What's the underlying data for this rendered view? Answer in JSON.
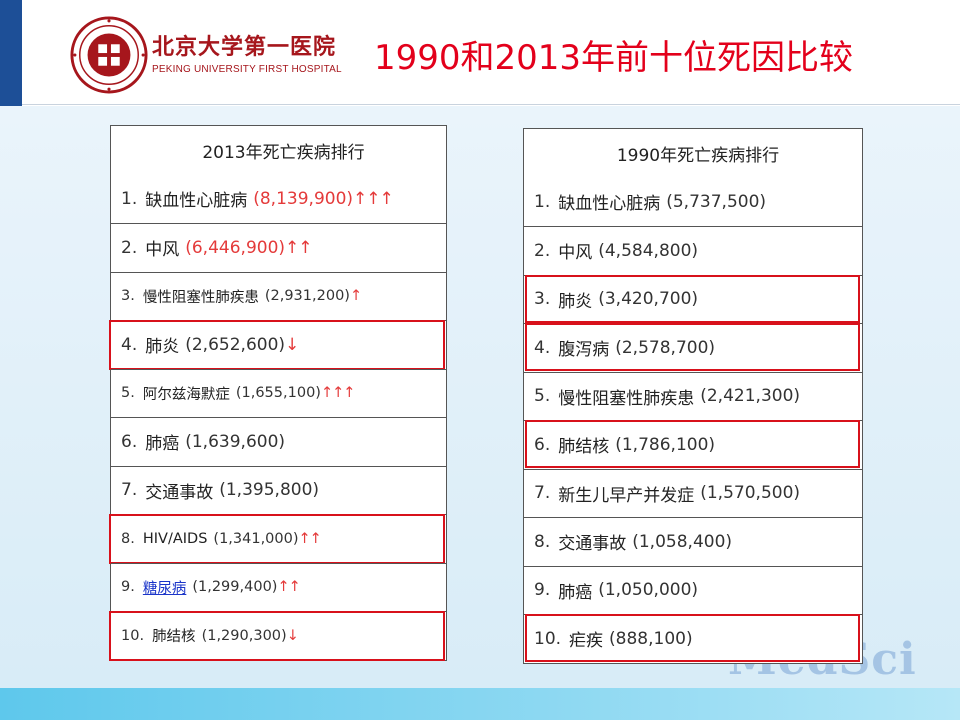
{
  "header": {
    "logo_cn": "北京大学第一医院",
    "logo_en": "PEKING UNIVERSITY FIRST HOSPITAL",
    "title": "1990和2013年前十位死因比较"
  },
  "colors": {
    "title": "#e3001b",
    "logo": "#a6161c",
    "highlight_box": "#d8111b",
    "up_down_arrow": "#e43a3a",
    "link": "#1b35c9"
  },
  "table_2013": {
    "title": "2013年死亡疾病排行",
    "rows": [
      {
        "rank": "1.",
        "name": "缺血性心脏病",
        "value": "(8,139,900)",
        "arrows": "↑↑↑",
        "highlighted": false
      },
      {
        "rank": "2.",
        "name": "中风",
        "value": "(6,446,900)",
        "arrows": "↑↑",
        "highlighted": false
      },
      {
        "rank": "3.",
        "name": "慢性阻塞性肺疾患",
        "value": "(2,931,200)",
        "arrows": "↑",
        "highlighted": false
      },
      {
        "rank": "4.",
        "name": "肺炎",
        "value": "(2,652,600)",
        "arrows": "↓",
        "highlighted": true
      },
      {
        "rank": "5.",
        "name": "阿尔兹海默症",
        "value": "(1,655,100)",
        "arrows": "↑↑↑",
        "highlighted": false
      },
      {
        "rank": "6.",
        "name": "肺癌",
        "value": "(1,639,600)",
        "arrows": "",
        "highlighted": false
      },
      {
        "rank": "7.",
        "name": "交通事故",
        "value": "(1,395,800)",
        "arrows": "",
        "highlighted": false
      },
      {
        "rank": "8.",
        "name": "HIV/AIDS",
        "value": "(1,341,000)",
        "arrows": "↑↑",
        "highlighted": true
      },
      {
        "rank": "9.",
        "name": "糖尿病",
        "value": "(1,299,400)",
        "arrows": "↑↑",
        "highlighted": false
      },
      {
        "rank": "10.",
        "name": "肺结核",
        "value": "(1,290,300)",
        "arrows": "↓",
        "highlighted": true
      }
    ]
  },
  "table_1990": {
    "title": "1990年死亡疾病排行",
    "rows": [
      {
        "rank": "1.",
        "name": "缺血性心脏病",
        "value": "(5,737,500)",
        "highlighted": false
      },
      {
        "rank": "2.",
        "name": "中风",
        "value": "(4,584,800)",
        "highlighted": false
      },
      {
        "rank": "3.",
        "name": "肺炎",
        "value": "(3,420,700)",
        "highlighted": true
      },
      {
        "rank": "4.",
        "name": "腹泻病",
        "value": "(2,578,700)",
        "highlighted": true
      },
      {
        "rank": "5.",
        "name": "慢性阻塞性肺疾患",
        "value": "(2,421,300)",
        "highlighted": false
      },
      {
        "rank": "6.",
        "name": "肺结核",
        "value": "(1,786,100)",
        "highlighted": true
      },
      {
        "rank": "7.",
        "name": "新生儿早产并发症",
        "value": "(1,570,500)",
        "highlighted": false
      },
      {
        "rank": "8.",
        "name": "交通事故",
        "value": "(1,058,400)",
        "highlighted": false
      },
      {
        "rank": "9.",
        "name": "肺癌",
        "value": "(1,050,000)",
        "highlighted": false
      },
      {
        "rank": "10.",
        "name": "疟疾",
        "value": "(888,100)",
        "highlighted": true
      }
    ]
  },
  "watermark": "MedSci"
}
